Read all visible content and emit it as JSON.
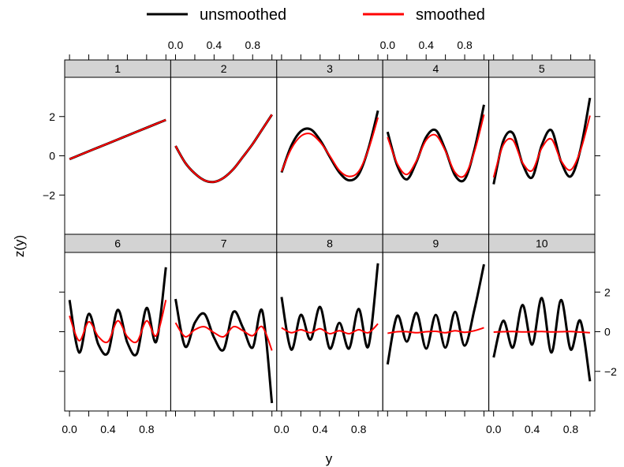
{
  "chart_data": {
    "type": "line",
    "layout": "lattice panels 5 columns x 2 rows",
    "xlabel": "y",
    "ylabel": "z(y)",
    "xlim": [
      -0.05,
      1.05
    ],
    "ylim": [
      -4.0,
      4.0
    ],
    "x_ticks": [
      "0.0",
      "0.4",
      "0.8"
    ],
    "x_tick_values": [
      0.0,
      0.4,
      0.8
    ],
    "y_ticks": [
      "−2",
      "0",
      "2"
    ],
    "y_tick_values": [
      -2,
      0,
      2
    ],
    "legend": [
      {
        "name": "unsmoothed",
        "color": "#000000"
      },
      {
        "name": "smoothed",
        "color": "#ff0000"
      }
    ],
    "x": [
      0.0,
      0.1,
      0.2,
      0.3,
      0.4,
      0.5,
      0.6,
      0.7,
      0.8,
      0.9,
      1.0
    ],
    "panels": [
      {
        "label": "1",
        "unsmoothed": [
          -0.17,
          0.03,
          0.23,
          0.43,
          0.63,
          0.83,
          1.03,
          1.23,
          1.43,
          1.63,
          1.83
        ],
        "smoothed": [
          -0.17,
          0.03,
          0.23,
          0.43,
          0.63,
          0.83,
          1.03,
          1.23,
          1.43,
          1.63,
          1.83
        ]
      },
      {
        "label": "2",
        "unsmoothed": [
          0.5,
          -0.35,
          -0.9,
          -1.25,
          -1.33,
          -1.12,
          -0.68,
          -0.05,
          0.6,
          1.35,
          2.1
        ],
        "smoothed": [
          0.5,
          -0.35,
          -0.9,
          -1.25,
          -1.33,
          -1.12,
          -0.68,
          -0.05,
          0.6,
          1.35,
          2.1
        ]
      },
      {
        "label": "3",
        "unsmoothed": [
          -0.85,
          0.5,
          1.25,
          1.35,
          0.8,
          -0.05,
          -0.85,
          -1.25,
          -0.95,
          0.35,
          2.3
        ],
        "smoothed": [
          -0.8,
          0.35,
          1.0,
          1.12,
          0.7,
          0.0,
          -0.75,
          -1.05,
          -0.8,
          0.3,
          1.95
        ]
      },
      {
        "label": "4",
        "unsmoothed": [
          1.22,
          -0.5,
          -1.2,
          -0.3,
          0.95,
          1.3,
          0.3,
          -1.0,
          -1.2,
          0.3,
          2.6
        ],
        "smoothed": [
          0.95,
          -0.4,
          -0.95,
          -0.25,
          0.8,
          1.05,
          0.25,
          -0.85,
          -1.0,
          0.2,
          2.1
        ]
      },
      {
        "label": "5",
        "unsmoothed": [
          -1.45,
          0.75,
          1.15,
          -0.4,
          -1.1,
          0.55,
          1.3,
          -0.3,
          -1.05,
          0.3,
          2.95
        ],
        "smoothed": [
          -1.1,
          0.55,
          0.8,
          -0.35,
          -0.75,
          0.4,
          0.85,
          -0.25,
          -0.72,
          0.25,
          2.05
        ]
      },
      {
        "label": "6",
        "unsmoothed": [
          1.6,
          -1.05,
          0.9,
          -0.65,
          -1.05,
          1.1,
          -0.55,
          -1.1,
          1.2,
          -0.5,
          3.25
        ],
        "smoothed": [
          0.8,
          -0.45,
          0.5,
          -0.25,
          -0.5,
          0.55,
          -0.25,
          -0.5,
          0.55,
          -0.2,
          1.6
        ]
      },
      {
        "label": "7",
        "unsmoothed": [
          1.65,
          -0.75,
          0.45,
          0.9,
          -0.3,
          -0.9,
          1.0,
          0.2,
          -0.8,
          1.05,
          -3.6
        ],
        "smoothed": [
          0.45,
          -0.25,
          0.1,
          0.25,
          -0.05,
          -0.25,
          0.25,
          0.05,
          -0.2,
          0.25,
          -0.95
        ]
      },
      {
        "label": "8",
        "unsmoothed": [
          1.75,
          -0.9,
          0.85,
          -0.4,
          1.25,
          -0.85,
          0.45,
          -0.85,
          1.15,
          -0.75,
          3.45
        ],
        "smoothed": [
          0.2,
          -0.05,
          0.1,
          -0.05,
          0.15,
          -0.1,
          0.05,
          -0.1,
          0.1,
          -0.05,
          0.4
        ]
      },
      {
        "label": "9",
        "unsmoothed": [
          -1.65,
          0.8,
          -0.5,
          0.95,
          -0.85,
          0.85,
          -0.8,
          1.0,
          -0.7,
          1.1,
          3.4
        ],
        "smoothed": [
          -0.08,
          0.0,
          0.0,
          -0.05,
          0.0,
          0.02,
          -0.05,
          0.05,
          -0.03,
          0.05,
          0.2
        ]
      },
      {
        "label": "10",
        "unsmoothed": [
          -1.3,
          0.55,
          -0.8,
          1.35,
          -0.65,
          1.7,
          -1.05,
          1.6,
          -0.9,
          0.55,
          -2.5
        ],
        "smoothed": [
          -0.02,
          0.0,
          0.01,
          -0.01,
          0.0,
          0.01,
          -0.01,
          0.0,
          0.01,
          -0.02,
          -0.05
        ]
      }
    ]
  }
}
